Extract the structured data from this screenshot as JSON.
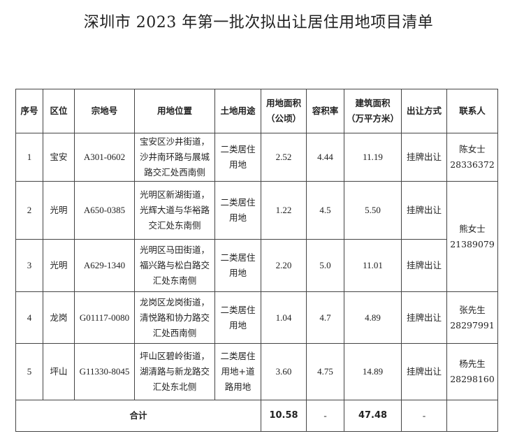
{
  "title": "深圳市 2023 年第一批次拟出让居住用地项目清单",
  "headers": [
    "序号",
    "区位",
    "宗地号",
    "用地位置",
    "土地用途",
    "用地面积\n（公顷）",
    "容积率",
    "建筑面积\n（万平方米）",
    "出让方式",
    "联系人"
  ],
  "rows": [
    {
      "no": "1",
      "district": "宝安",
      "parcel": "A301-0602",
      "location": "宝安区沙井街道，\n沙井南环路与展城\n路交汇处西南侧",
      "use": "二类居住\n用地",
      "area": "2.52",
      "far": "4.44",
      "gfa": "11.19",
      "method": "挂牌出让",
      "contact": "陈女士\n28336372"
    },
    {
      "no": "2",
      "district": "光明",
      "parcel": "A650-0385",
      "location": "光明区新湖街道，\n光辉大道与华裕路\n交汇处东南侧",
      "use": "二类居住\n用地",
      "area": "1.22",
      "far": "4.5",
      "gfa": "5.50",
      "method": "挂牌出让",
      "contact": "熊女士\n21389079"
    },
    {
      "no": "3",
      "district": "光明",
      "parcel": "A629-1340",
      "location": "光明区马田街道，\n福兴路与松白路交\n汇处东南侧",
      "use": "二类居住\n用地",
      "area": "2.20",
      "far": "5.0",
      "gfa": "11.01",
      "method": "挂牌出让"
    },
    {
      "no": "4",
      "district": "龙岗",
      "parcel": "G01117-0080",
      "location": "龙岗区龙岗街道，\n清悦路和协力路交\n汇处西南侧",
      "use": "二类居住\n用地",
      "area": "1.04",
      "far": "4.7",
      "gfa": "4.89",
      "method": "挂牌出让",
      "contact": "张先生\n28297991"
    },
    {
      "no": "5",
      "district": "坪山",
      "parcel": "G11330-8045",
      "location": "坪山区碧岭街道，\n湖清路与新龙路交\n汇处东北侧",
      "use": "二类居住\n用地+道\n路用地",
      "area": "3.60",
      "far": "4.75",
      "gfa": "14.89",
      "method": "挂牌出让",
      "contact": "杨先生\n28298160"
    }
  ],
  "total": {
    "label": "合计",
    "area": "10.58",
    "far": "-",
    "gfa": "47.48",
    "method": "-",
    "contact": ""
  }
}
